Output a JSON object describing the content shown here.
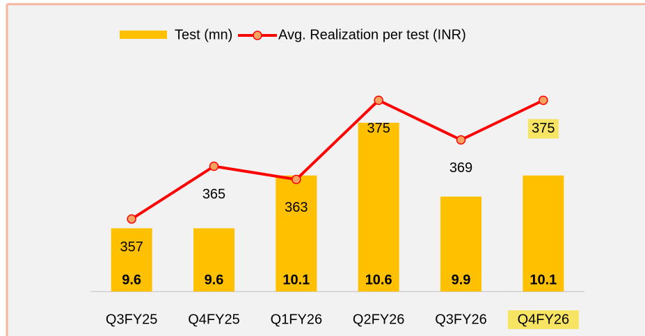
{
  "chart_data": {
    "type": "combo",
    "categories": [
      "Q3FY25",
      "Q4FY25",
      "Q1FY26",
      "Q2FY26",
      "Q3FY26",
      "Q4FY26"
    ],
    "series": [
      {
        "name": "Test (mn)",
        "type": "bar",
        "color": "#ffc000",
        "values": [
          9.6,
          9.6,
          10.1,
          10.6,
          9.9,
          10.1
        ]
      },
      {
        "name": "Avg. Realization per test (INR)",
        "type": "line",
        "axis": "y2",
        "color": "#ff0000",
        "marker_color": "#f4a460",
        "values": [
          357,
          365,
          363,
          375,
          369,
          375
        ]
      }
    ],
    "ylim": [
      9,
      11
    ],
    "y2lim": [
      346,
      378
    ],
    "legend": "top"
  }
}
